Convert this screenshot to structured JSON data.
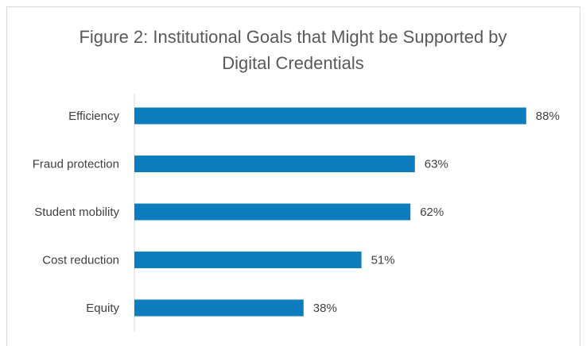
{
  "chart_data": {
    "type": "bar",
    "orientation": "horizontal",
    "title_lines": [
      "Figure 2: Institutional Goals that Might be Supported by",
      "Digital Credentials"
    ],
    "categories": [
      "Efficiency",
      "Fraud protection",
      "Student mobility",
      "Cost reduction",
      "Equity"
    ],
    "values": [
      88,
      63,
      62,
      51,
      38
    ],
    "value_labels": [
      "88%",
      "63%",
      "62%",
      "51%",
      "38%"
    ],
    "unit": "%",
    "xlim": [
      0,
      100
    ],
    "xlabel": "",
    "ylabel": "",
    "grid": false,
    "legend": "none",
    "bar_color": "#0e7dbe",
    "axis_color": "#d9d9d9"
  }
}
